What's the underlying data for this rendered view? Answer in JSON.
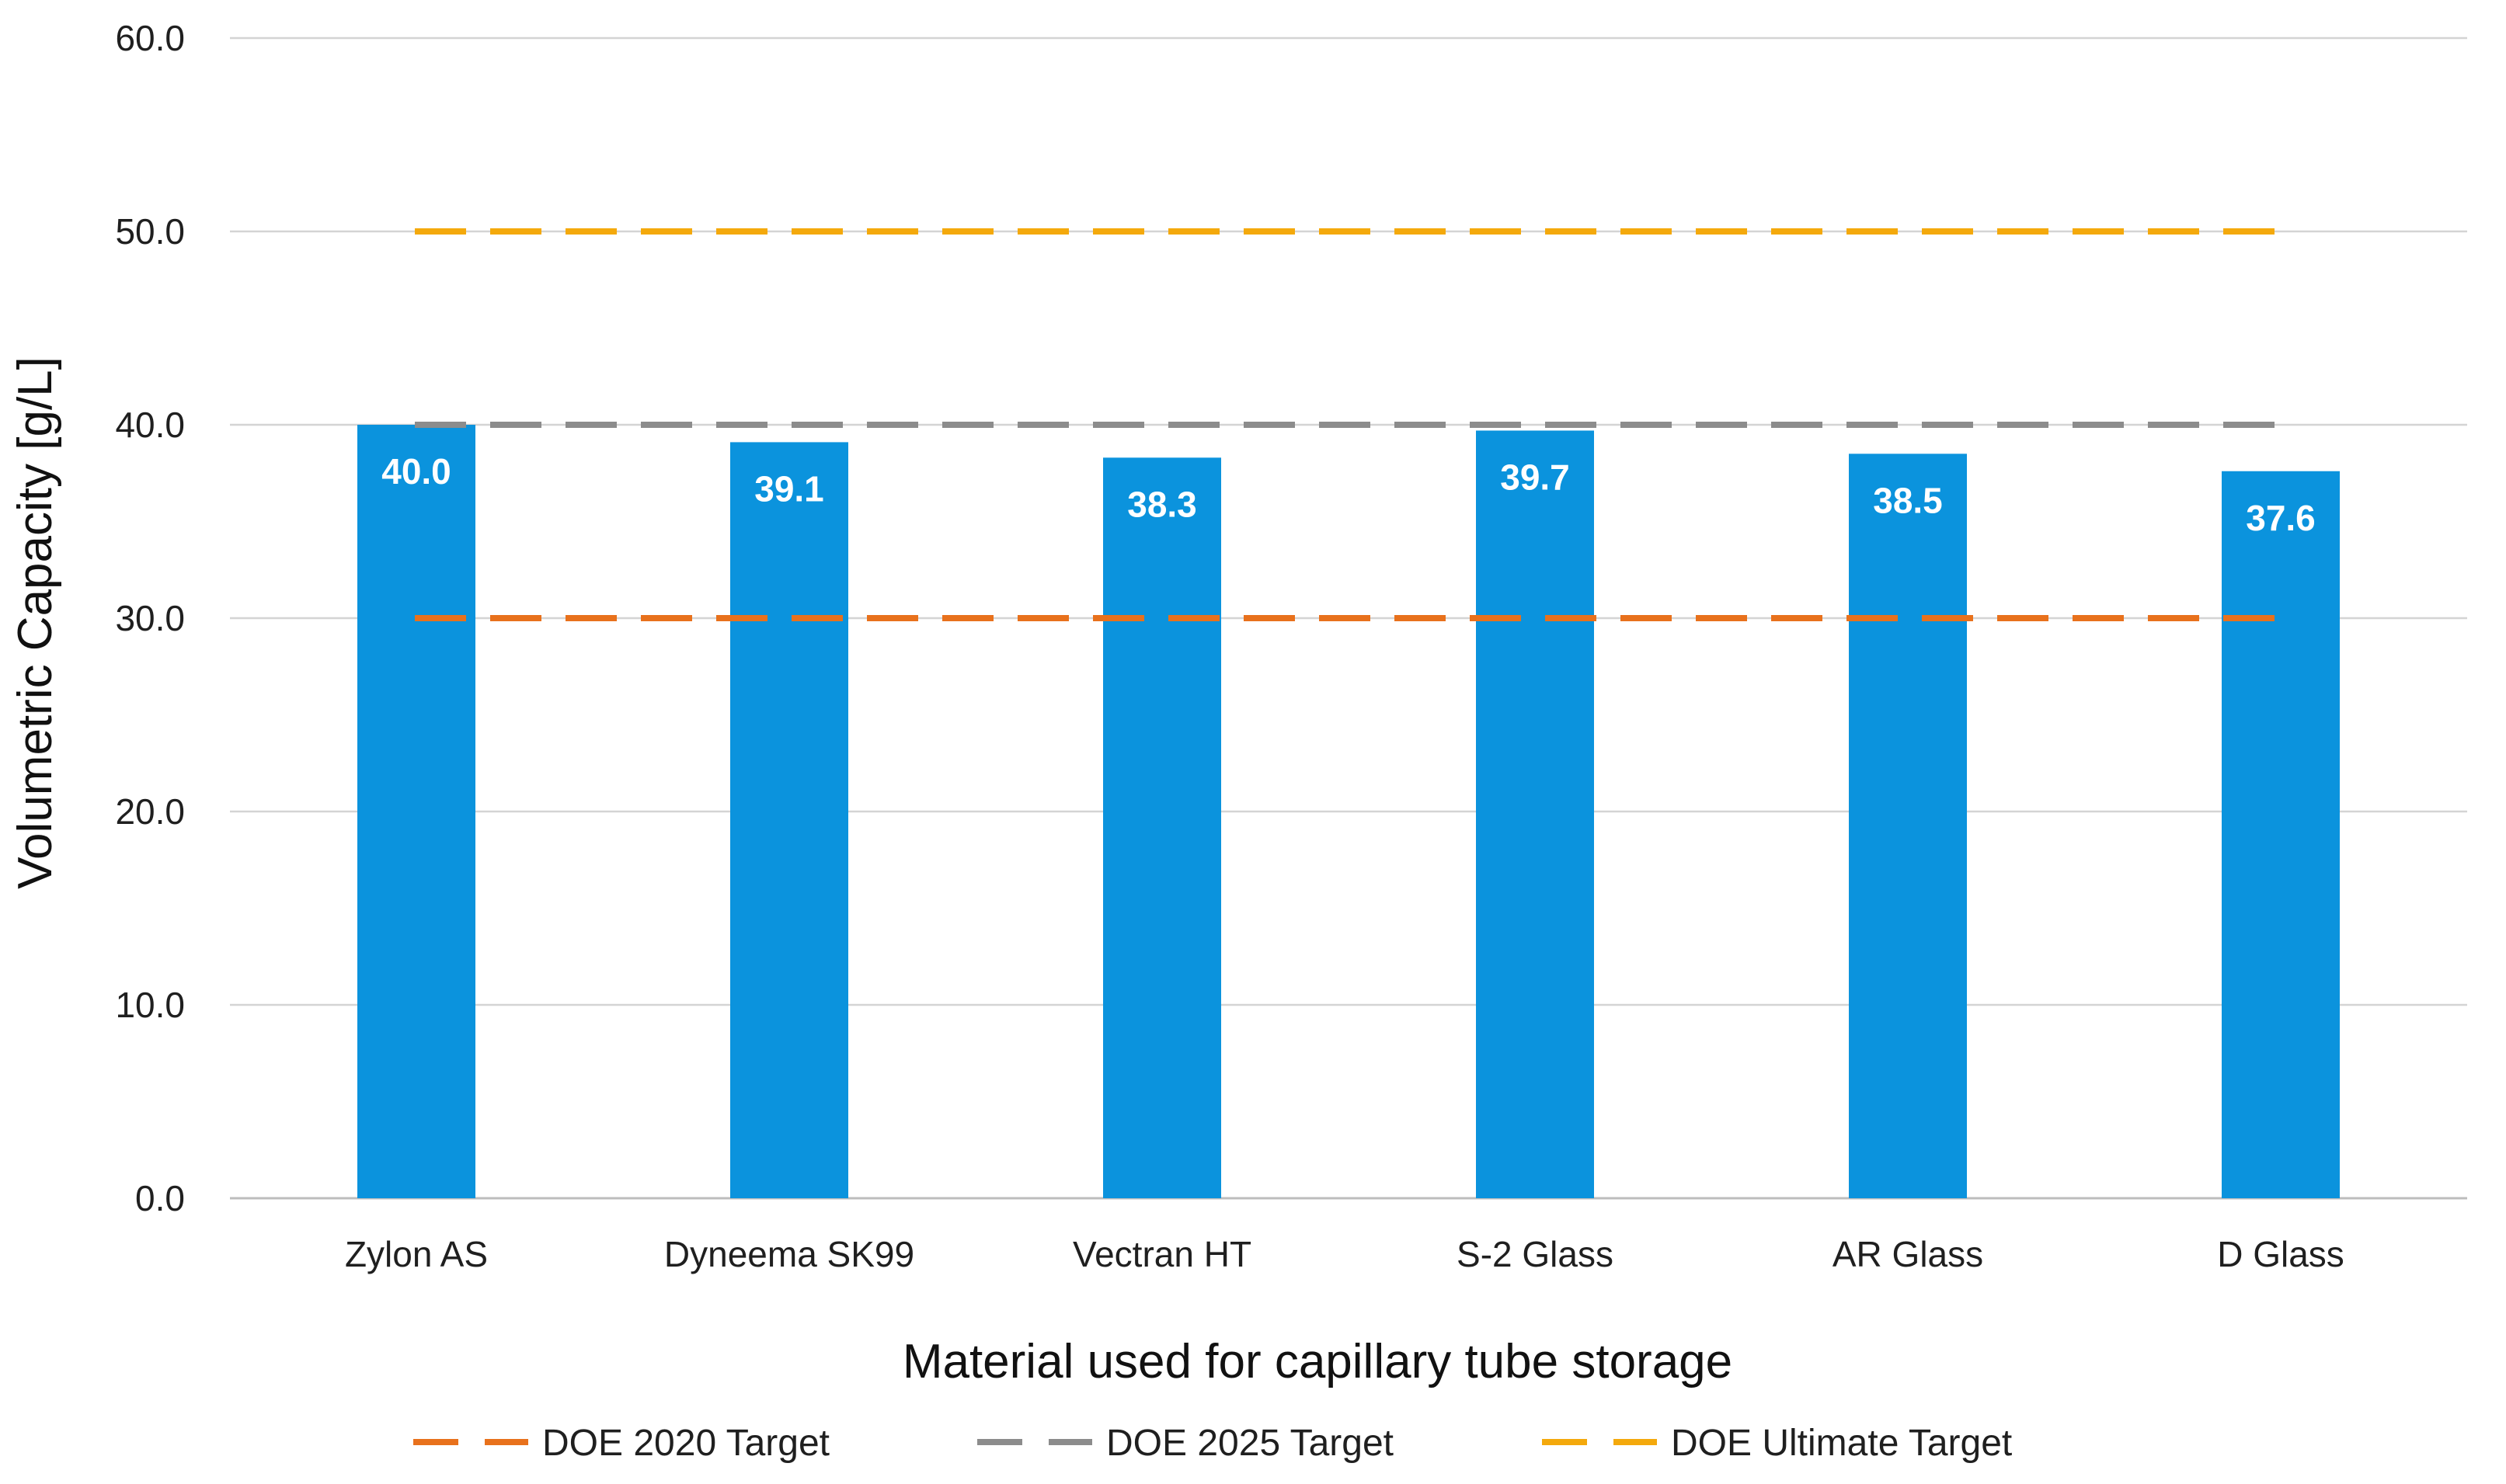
{
  "chart_data": {
    "type": "bar",
    "title": "",
    "xlabel": "Material used for capillary tube storage",
    "ylabel": "Volumetric Capacity [g/L]",
    "ylim": [
      0,
      60
    ],
    "yticks": [
      0,
      10,
      20,
      30,
      40,
      50,
      60
    ],
    "ytick_labels": [
      "0.0",
      "10.0",
      "20.0",
      "30.0",
      "40.0",
      "50.0",
      "60.0"
    ],
    "grid": true,
    "categories": [
      "Zylon AS",
      "Dyneema SK99",
      "Vectran HT",
      "S-2 Glass",
      "AR Glass",
      "D Glass"
    ],
    "series": [
      {
        "name": "Volumetric Capacity",
        "values": [
          40.0,
          39.1,
          38.3,
          39.7,
          38.5,
          37.6
        ],
        "labels": [
          "40.0",
          "39.1",
          "38.3",
          "39.7",
          "38.5",
          "37.6"
        ],
        "color": "#0b93dd"
      }
    ],
    "reference_lines": [
      {
        "name": "DOE 2020 Target",
        "value": 30,
        "color": "#e8711c",
        "style": "dashed"
      },
      {
        "name": "DOE 2025 Target",
        "value": 40,
        "color": "#8c8c8c",
        "style": "dashed"
      },
      {
        "name": "DOE Ultimate Target",
        "value": 50,
        "color": "#f4a90c",
        "style": "dashed"
      }
    ],
    "legend_position": "bottom"
  }
}
